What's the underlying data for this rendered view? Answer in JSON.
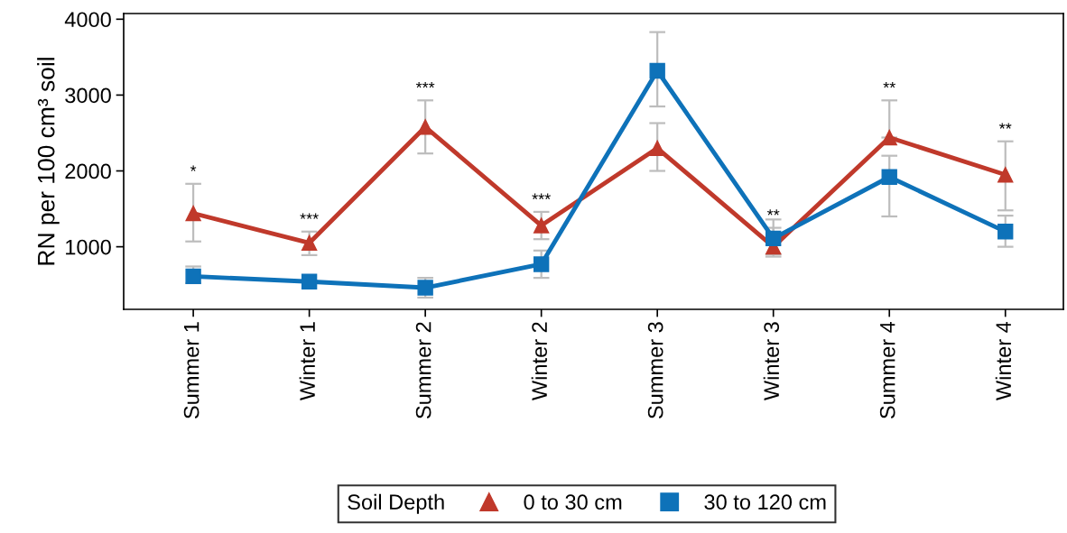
{
  "chart_data": {
    "type": "line",
    "ylabel": "RN per 100 cm³ soil",
    "legend_title": "Soil Depth",
    "categories": [
      "Summer 1",
      "Winter 1",
      "Summer 2",
      "Winter 2",
      "Summer 3",
      "Winter 3",
      "Summer 4",
      "Winter 4"
    ],
    "series": [
      {
        "name": "0 to 30 cm",
        "color": "#c0392b",
        "marker": "triangle",
        "values": [
          1440,
          1050,
          2580,
          1280,
          2300,
          1000,
          2440,
          1950
        ],
        "value_labels": [
          "*",
          "***",
          "***",
          "***",
          null,
          "**",
          "**",
          "**"
        ],
        "errors": [
          [
            1070,
            1830
          ],
          [
            890,
            1200
          ],
          [
            2230,
            2930
          ],
          [
            1100,
            1460
          ],
          [
            2000,
            2630
          ],
          [
            900,
            1250
          ],
          [
            2440,
            2930
          ],
          [
            1480,
            2390
          ]
        ]
      },
      {
        "name": "30 to 120 cm",
        "color": "#0e72b9",
        "marker": "square",
        "values": [
          610,
          540,
          460,
          770,
          3320,
          1110,
          1920,
          1200
        ],
        "errors": [
          [
            520,
            740
          ],
          null,
          [
            330,
            590
          ],
          [
            590,
            950
          ],
          [
            2850,
            3830
          ],
          [
            870,
            1360
          ],
          [
            1400,
            2200
          ],
          [
            1000,
            1410
          ]
        ]
      }
    ],
    "ylim": [
      175,
      4075
    ],
    "yticks": [
      1000,
      2000,
      3000,
      4000
    ],
    "grid": false,
    "legend": "bottom",
    "line_style": "solid"
  }
}
